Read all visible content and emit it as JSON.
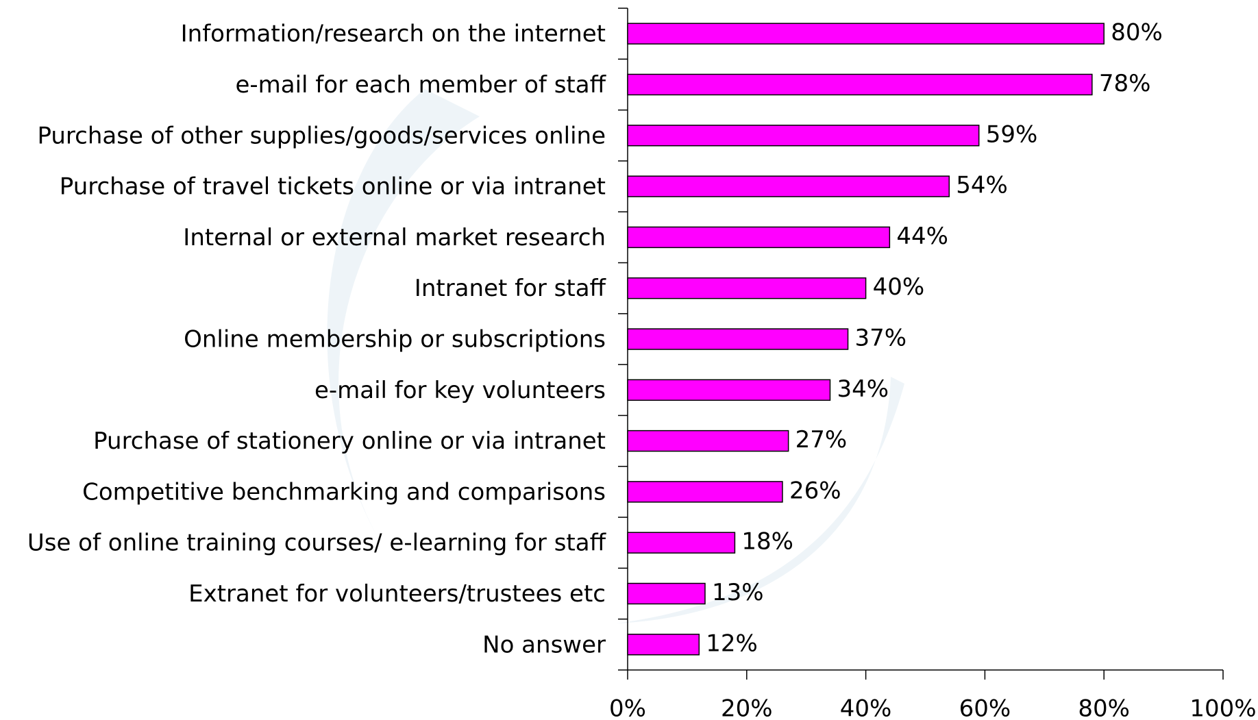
{
  "chart_data": {
    "type": "bar",
    "orientation": "horizontal",
    "categories": [
      "Information/research on the internet",
      "e-mail for each member of staff",
      "Purchase of other supplies/goods/services online",
      "Purchase of travel tickets online or via intranet",
      "Internal or external market research",
      "Intranet for staff",
      "Online membership or subscriptions",
      "e-mail for key volunteers",
      "Purchase of stationery online or via intranet",
      "Competitive benchmarking and comparisons",
      "Use of online training courses/ e-learning for staff",
      "Extranet for volunteers/trustees etc",
      "No answer"
    ],
    "values": [
      80,
      78,
      59,
      54,
      44,
      40,
      37,
      34,
      27,
      26,
      18,
      13,
      12
    ],
    "value_labels": [
      "80%",
      "78%",
      "59%",
      "54%",
      "44%",
      "40%",
      "37%",
      "34%",
      "27%",
      "26%",
      "18%",
      "13%",
      "12%"
    ],
    "color": "#ff00ff",
    "xlim": [
      0,
      100
    ],
    "xticks": [
      {
        "value": 0,
        "label": "0%"
      },
      {
        "value": 20,
        "label": "20%"
      },
      {
        "value": 40,
        "label": "40%"
      },
      {
        "value": 60,
        "label": "60%"
      },
      {
        "value": 80,
        "label": "80%"
      },
      {
        "value": 100,
        "label": "100%"
      }
    ]
  }
}
